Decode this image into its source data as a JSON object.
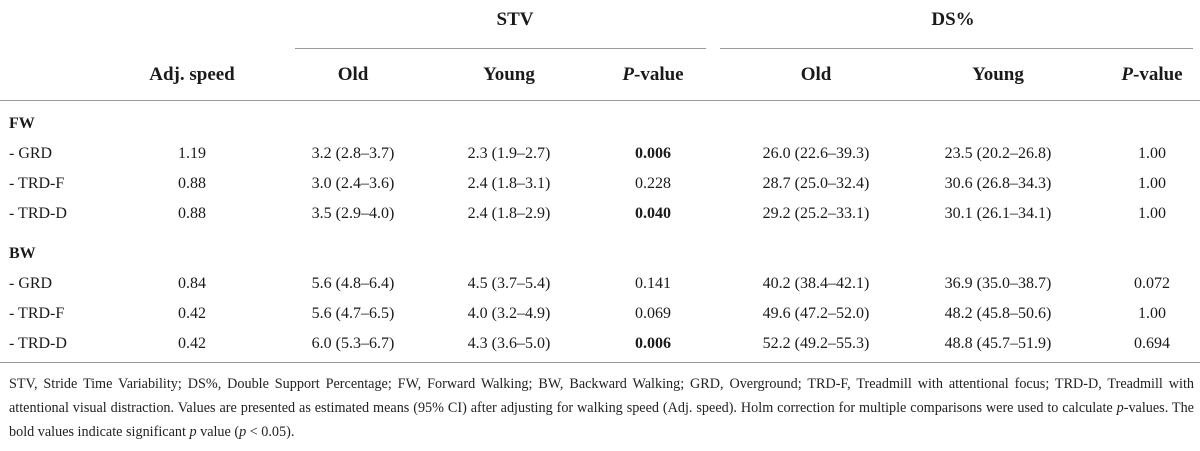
{
  "header": {
    "group_stv": "STV",
    "group_ds": "DS%",
    "adj_speed": "Adj. speed",
    "stv_old": "Old",
    "stv_young": "Young",
    "stv_p_italic": "P",
    "stv_p_rest": "-value",
    "ds_old": "Old",
    "ds_young": "Young",
    "ds_p_italic": "P",
    "ds_p_rest": "-value"
  },
  "sections": [
    {
      "label": "FW",
      "rows": [
        {
          "cond": "- GRD",
          "speed": "1.19",
          "stv_old": "3.2 (2.8–3.7)",
          "stv_young": "2.3 (1.9–2.7)",
          "stv_p": "0.006",
          "stv_p_bold": true,
          "ds_old": "26.0 (22.6–39.3)",
          "ds_young": "23.5 (20.2–26.8)",
          "ds_p": "1.00"
        },
        {
          "cond": "- TRD-F",
          "speed": "0.88",
          "stv_old": "3.0 (2.4–3.6)",
          "stv_young": "2.4 (1.8–3.1)",
          "stv_p": "0.228",
          "stv_p_bold": false,
          "ds_old": "28.7 (25.0–32.4)",
          "ds_young": "30.6 (26.8–34.3)",
          "ds_p": "1.00"
        },
        {
          "cond": "- TRD-D",
          "speed": "0.88",
          "stv_old": "3.5 (2.9–4.0)",
          "stv_young": "2.4 (1.8–2.9)",
          "stv_p": "0.040",
          "stv_p_bold": true,
          "ds_old": "29.2 (25.2–33.1)",
          "ds_young": "30.1 (26.1–34.1)",
          "ds_p": "1.00"
        }
      ]
    },
    {
      "label": "BW",
      "rows": [
        {
          "cond": "- GRD",
          "speed": "0.84",
          "stv_old": "5.6 (4.8–6.4)",
          "stv_young": "4.5 (3.7–5.4)",
          "stv_p": "0.141",
          "stv_p_bold": false,
          "ds_old": "40.2 (38.4–42.1)",
          "ds_young": "36.9 (35.0–38.7)",
          "ds_p": "0.072"
        },
        {
          "cond": "- TRD-F",
          "speed": "0.42",
          "stv_old": "5.6 (4.7–6.5)",
          "stv_young": "4.0 (3.2–4.9)",
          "stv_p": "0.069",
          "stv_p_bold": false,
          "ds_old": "49.6 (47.2–52.0)",
          "ds_young": "48.2 (45.8–50.6)",
          "ds_p": "1.00"
        },
        {
          "cond": "- TRD-D",
          "speed": "0.42",
          "stv_old": "6.0 (5.3–6.7)",
          "stv_young": "4.3 (3.6–5.0)",
          "stv_p": "0.006",
          "stv_p_bold": true,
          "ds_old": "52.2 (49.2–55.3)",
          "ds_young": "48.8 (45.7–51.9)",
          "ds_p": "0.694"
        }
      ]
    }
  ],
  "footnote": {
    "part1": "STV, Stride Time Variability; DS%, Double Support Percentage; FW, Forward Walking; BW, Backward Walking; GRD, Overground; TRD-F, Treadmill with attentional focus; TRD-D, Treadmill with attentional visual distraction. Values are presented as estimated means (95% CI) after adjusting for walking speed (Adj. speed). Holm correction for multiple comparisons were used to calculate ",
    "p_italic": "p",
    "part2": "-values. The bold values indicate significant ",
    "p_italic2": "p",
    "part3": " value (",
    "p_italic3": "p",
    "part4": " < 0.05)."
  }
}
